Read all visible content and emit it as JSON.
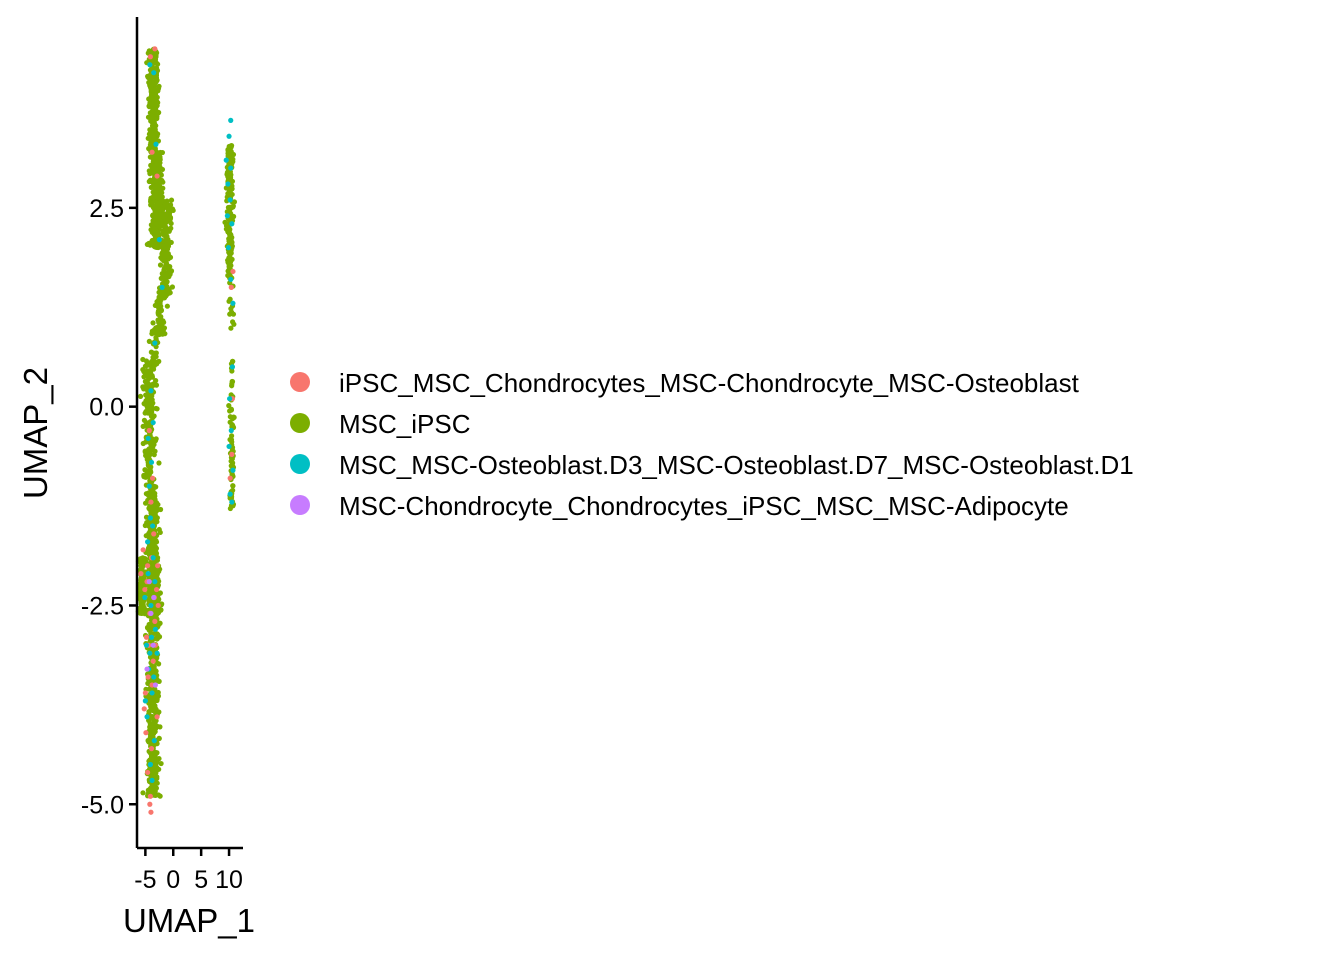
{
  "chart_data": {
    "type": "scatter",
    "title": "",
    "xlabel": "UMAP_1",
    "ylabel": "UMAP_2",
    "xlim": [
      -6.5,
      12.5
    ],
    "ylim": [
      -5.55,
      4.9
    ],
    "x_ticks": [
      -5,
      0,
      5,
      10
    ],
    "x_tick_labels": [
      "-5",
      "0",
      "5",
      "10"
    ],
    "y_ticks": [
      -5.0,
      -2.5,
      0.0,
      2.5
    ],
    "y_tick_labels": [
      "-5.0",
      "-2.5",
      "0.0",
      "2.5"
    ],
    "grid": false,
    "legend_position": "right",
    "series": [
      {
        "name": "iPSC_MSC_Chondrocytes_MSC-Chondrocyte_MSC-Osteoblast",
        "color": "#F8766D",
        "points": [
          [
            -5.8,
            -2.1
          ],
          [
            -5.4,
            -1.8
          ],
          [
            -5.1,
            -2.3
          ],
          [
            -4.6,
            -2.0
          ],
          [
            -4.2,
            -2.6
          ],
          [
            -3.9,
            -1.9
          ],
          [
            -3.4,
            -2.4
          ],
          [
            -3.6,
            -3.2
          ],
          [
            -4.4,
            -3.0
          ],
          [
            -5.0,
            -3.6
          ],
          [
            -4.8,
            -2.9
          ],
          [
            -3.8,
            -3.5
          ],
          [
            -3.3,
            -2.7
          ],
          [
            -3.0,
            -2.3
          ],
          [
            -2.8,
            -2.0
          ],
          [
            -4.0,
            -1.2
          ],
          [
            -3.7,
            -0.9
          ],
          [
            -4.3,
            -0.3
          ],
          [
            -3.5,
            -1.6
          ],
          [
            -2.9,
            -3.9
          ],
          [
            -4.9,
            -4.1
          ],
          [
            -4.6,
            -4.6
          ],
          [
            -4.2,
            -5.0
          ],
          [
            -4.0,
            -5.1
          ],
          [
            -4.1,
            -4.9
          ],
          [
            -3.9,
            -4.3
          ],
          [
            -5.2,
            -3.8
          ],
          [
            -4.5,
            -3.4
          ],
          [
            -3.2,
            -3.0
          ],
          [
            -2.7,
            -2.5
          ],
          [
            -4.1,
            4.4
          ],
          [
            -3.3,
            4.5
          ],
          [
            -3.8,
            3.2
          ],
          [
            -2.9,
            2.9
          ],
          [
            10.4,
            1.5
          ],
          [
            10.7,
            1.7
          ],
          [
            10.5,
            -0.6
          ],
          [
            10.2,
            -0.9
          ],
          [
            10.6,
            0.1
          ],
          [
            -4.7,
            -2.2
          ]
        ]
      },
      {
        "name": "MSC_iPSC",
        "color": "#7CAE00",
        "columns": [
          {
            "x": -3.7,
            "sx": 0.9,
            "y0": -4.9,
            "y1": -1.0,
            "n": 700
          },
          {
            "x": -4.3,
            "sx": 1.0,
            "y0": -1.0,
            "y1": 0.6,
            "n": 200
          },
          {
            "x": -3.6,
            "sx": 0.8,
            "y0": 3.2,
            "y1": 4.5,
            "n": 260
          },
          {
            "x": -3.0,
            "sx": 0.9,
            "y0": 2.0,
            "y1": 3.2,
            "n": 320
          },
          {
            "x": -1.3,
            "sx": 0.9,
            "y0": 1.4,
            "y1": 2.6,
            "n": 180
          },
          {
            "x": -2.4,
            "sx": 0.9,
            "y0": 0.9,
            "y1": 1.5,
            "n": 70
          },
          {
            "x": -3.4,
            "sx": 0.8,
            "y0": 0.5,
            "y1": 1.0,
            "n": 30
          },
          {
            "x": -5.6,
            "sx": 0.5,
            "y0": -2.6,
            "y1": -1.9,
            "n": 120
          },
          {
            "x": -3.0,
            "sx": 0.8,
            "y0": -2.8,
            "y1": -2.0,
            "n": 60
          },
          {
            "x": 10.1,
            "sx": 0.5,
            "y0": 1.6,
            "y1": 3.3,
            "n": 200
          },
          {
            "x": 10.5,
            "sx": 0.3,
            "y0": -1.3,
            "y1": 0.6,
            "n": 80
          },
          {
            "x": 10.4,
            "sx": 0.4,
            "y0": 0.9,
            "y1": 1.6,
            "n": 12
          }
        ]
      },
      {
        "name": "MSC_MSC-Osteoblast.D3_MSC-Osteoblast.D7_MSC-Osteoblast.D1",
        "color": "#00BFC4",
        "points": [
          [
            -4.5,
            -2.1
          ],
          [
            -4.0,
            -2.5
          ],
          [
            -3.6,
            -1.9
          ],
          [
            -4.2,
            -3.1
          ],
          [
            -3.8,
            -3.6
          ],
          [
            -5.0,
            -3.7
          ],
          [
            -4.7,
            -3.9
          ],
          [
            -4.4,
            -3.3
          ],
          [
            -3.5,
            -3.4
          ],
          [
            -3.2,
            -2.8
          ],
          [
            -4.1,
            -1.4
          ],
          [
            -3.9,
            -0.7
          ],
          [
            -4.5,
            -0.4
          ],
          [
            -3.6,
            -0.2
          ],
          [
            -4.0,
            0.2
          ],
          [
            -4.3,
            -1.0
          ],
          [
            -3.7,
            -1.5
          ],
          [
            -5.1,
            -2.4
          ],
          [
            -4.8,
            -3.0
          ],
          [
            -3.4,
            -4.2
          ],
          [
            -4.1,
            -4.5
          ],
          [
            -3.8,
            -4.7
          ],
          [
            -3.5,
            4.2
          ],
          [
            -4.2,
            4.3
          ],
          [
            -3.1,
            3.3
          ],
          [
            -2.5,
            2.1
          ],
          [
            -2.0,
            1.5
          ],
          [
            -3.3,
            0.8
          ],
          [
            9.5,
            3.1
          ],
          [
            9.8,
            2.8
          ],
          [
            10.2,
            2.6
          ],
          [
            10.5,
            2.3
          ],
          [
            9.9,
            2.0
          ],
          [
            10.3,
            1.6
          ],
          [
            10.0,
            3.4
          ],
          [
            10.3,
            3.6
          ],
          [
            10.6,
            0.5
          ],
          [
            10.1,
            0.1
          ],
          [
            10.4,
            -0.3
          ],
          [
            10.7,
            -0.8
          ],
          [
            10.2,
            -1.1
          ],
          [
            10.5,
            -1.2
          ],
          [
            10.0,
            -0.5
          ],
          [
            10.3,
            3.0
          ],
          [
            9.7,
            2.4
          ],
          [
            10.7,
            1.3
          ],
          [
            -3.9,
            -2.9
          ],
          [
            -4.6,
            -1.7
          ],
          [
            -3.3,
            -2.2
          ],
          [
            -2.9,
            -3.1
          ]
        ]
      },
      {
        "name": "MSC-Chondrocyte_Chondrocytes_iPSC_MSC_MSC-Adipocyte",
        "color": "#C77CFF",
        "points": [
          [
            -4.0,
            -2.6
          ],
          [
            -3.6,
            -3.0
          ],
          [
            -4.3,
            -2.2
          ],
          [
            -3.2,
            -3.5
          ],
          [
            -4.7,
            -3.3
          ],
          [
            -3.5,
            -2.4
          ]
        ]
      }
    ]
  }
}
